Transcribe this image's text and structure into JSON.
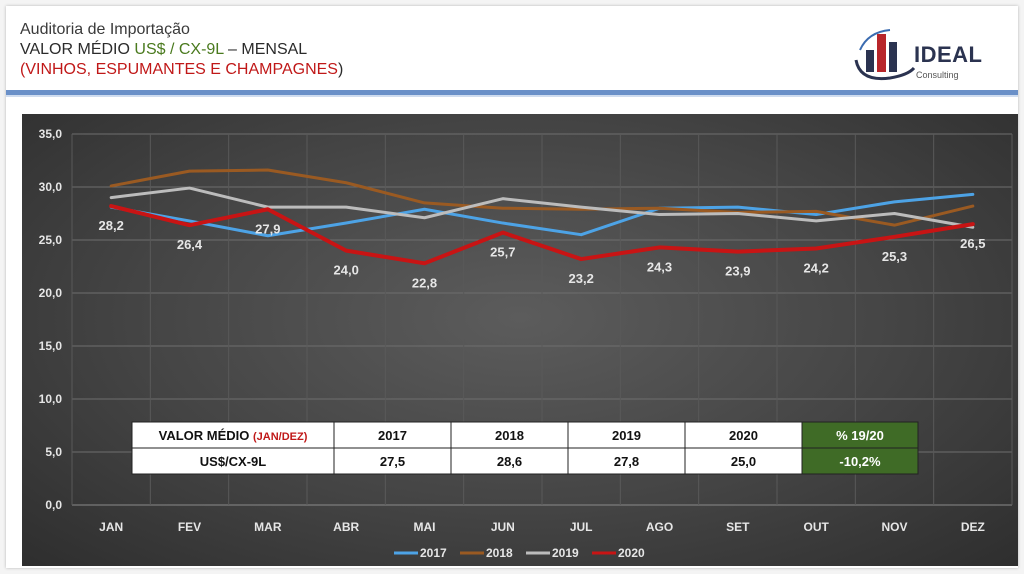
{
  "header": {
    "line1": "Auditoria de Importação",
    "line2_prefix": "VALOR MÉDIO ",
    "line2_currency": "US$ / CX-9L",
    "line2_suffix": " – MENSAL",
    "line3_open": "(",
    "line3_text": "VINHOS, ESPUMANTES E CHAMPAGNES",
    "line3_close": ")"
  },
  "logo": {
    "name": "IDEAL",
    "subtitle": "Consulting",
    "icon": "bar-chart-swoosh-icon"
  },
  "colors": {
    "accent_bar": "#6a90c8",
    "s2017": "#4da3e6",
    "s2018": "#9a5a22",
    "s2019": "#bcbcbc",
    "s2020": "#c81414",
    "table_highlight": "#3f6b26"
  },
  "chart_data": {
    "type": "line",
    "categories": [
      "JAN",
      "FEV",
      "MAR",
      "ABR",
      "MAI",
      "JUN",
      "JUL",
      "AGO",
      "SET",
      "OUT",
      "NOV",
      "DEZ"
    ],
    "ylim": [
      0,
      35
    ],
    "yticks": [
      "0,0",
      "5,0",
      "10,0",
      "15,0",
      "20,0",
      "25,0",
      "30,0",
      "35,0"
    ],
    "grid": true,
    "legend_position": "bottom",
    "series": [
      {
        "name": "2017",
        "values": [
          28.1,
          26.8,
          25.4,
          26.6,
          27.9,
          26.6,
          25.5,
          28.0,
          28.1,
          27.4,
          28.6,
          29.3
        ]
      },
      {
        "name": "2018",
        "values": [
          30.1,
          31.5,
          31.6,
          30.4,
          28.5,
          28.0,
          27.9,
          28.0,
          27.6,
          27.7,
          26.4,
          28.2
        ]
      },
      {
        "name": "2019",
        "values": [
          29.0,
          29.9,
          28.1,
          28.1,
          27.1,
          28.9,
          28.1,
          27.4,
          27.5,
          26.8,
          27.5,
          26.2
        ]
      },
      {
        "name": "2020",
        "values": [
          28.2,
          26.4,
          27.9,
          24.0,
          22.8,
          25.7,
          23.2,
          24.3,
          23.9,
          24.2,
          25.3,
          26.5
        ],
        "labels": [
          "28,2",
          "26,4",
          "27,9",
          "24,0",
          "22,8",
          "25,7",
          "23,2",
          "24,3",
          "23,9",
          "24,2",
          "25,3",
          "26,5"
        ]
      }
    ],
    "table": {
      "head_label": "VALOR MÉDIO ",
      "head_label_red": "(JAN/DEZ)",
      "years": [
        "2017",
        "2018",
        "2019",
        "2020"
      ],
      "pct_header": "% 19/20",
      "row_label": "US$/CX-9L",
      "values": [
        "27,5",
        "28,6",
        "27,8",
        "25,0"
      ],
      "pct_value": "-10,2%"
    }
  }
}
